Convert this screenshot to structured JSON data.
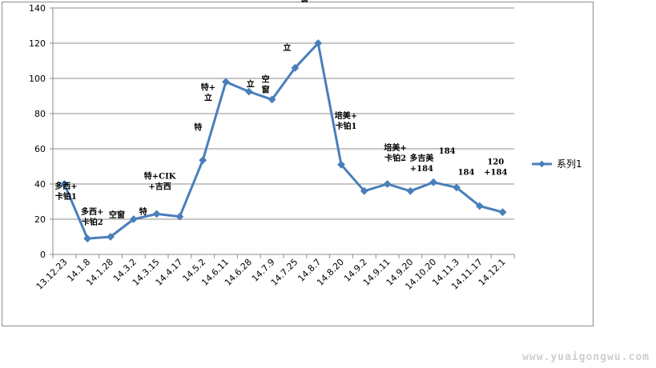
{
  "chart_data": {
    "type": "line",
    "categories": [
      "13.12.23",
      "14.1.8",
      "14.1.28",
      "14.3.2",
      "14.3.15",
      "14.4.17",
      "14.5.2",
      "14.6.11",
      "14.6.28",
      "14.7.9",
      "14.7.25",
      "14.8.7",
      "14.8.20",
      "14.9.2",
      "14.9.11",
      "14.9.20",
      "14.10.20",
      "14.11.3",
      "14.11.17",
      "14.12.1"
    ],
    "x_points": [
      "13.12.23",
      "",
      "14.1.8",
      "",
      "14.1.28",
      "",
      "14.3.2",
      "",
      "14.3.15",
      "",
      "14.4.17",
      "",
      "14.5.2",
      "",
      "14.6.11",
      "",
      "14.6.28",
      "",
      "14.7.9",
      "",
      "14.7.25",
      "",
      "14.8.7",
      "",
      "14.8.20",
      "",
      "14.9.2",
      "",
      "14.9.11",
      "",
      "14.9.20",
      "",
      "14.10.20",
      "",
      "14.11.3",
      "",
      "14.11.17",
      "",
      "14.12.1"
    ],
    "series": [
      {
        "name": "系列1",
        "color": "#4a7ebb",
        "values": [
          40,
          9,
          10,
          20,
          23,
          21.5,
          53.5,
          98,
          92.5,
          88,
          106,
          120,
          51,
          36,
          40,
          36,
          41,
          38,
          27.5,
          24
        ]
      }
    ],
    "ylim": [
      0,
      140
    ],
    "yticks": [
      0,
      20,
      40,
      60,
      80,
      100,
      120,
      140
    ],
    "grid": true,
    "legend_position": "right",
    "annotations": [
      {
        "point": 0,
        "lines": [
          "多西+",
          "卡铂1"
        ]
      },
      {
        "point": 1,
        "lines": [
          "多西+",
          "卡铂2"
        ]
      },
      {
        "point": 2,
        "lines": [
          "空窗"
        ]
      },
      {
        "point": 3,
        "lines": [
          "特"
        ]
      },
      {
        "point": 4,
        "lines": [
          "特+CIK",
          "+吉西"
        ]
      },
      {
        "point": 6,
        "lines": [
          "特"
        ]
      },
      {
        "point": 7,
        "lines": [
          "特+",
          "立"
        ]
      },
      {
        "point": 8,
        "lines": [
          "立"
        ]
      },
      {
        "point": 9,
        "lines": [
          "空",
          "窗"
        ]
      },
      {
        "point": 10,
        "lines": [
          "立"
        ]
      },
      {
        "point": 11,
        "lines": [
          "空",
          "窗"
        ]
      },
      {
        "point": 12,
        "lines": [
          "培美+",
          "卡铂1"
        ]
      },
      {
        "point": 14,
        "lines": [
          "培美+",
          "卡铂2"
        ]
      },
      {
        "point": 15,
        "lines": [
          "多吉美",
          "+184"
        ]
      },
      {
        "point": 16,
        "lines": [
          "184"
        ]
      },
      {
        "point": 17,
        "lines": [
          "184"
        ]
      },
      {
        "point": 18,
        "lines": [
          "120",
          "+184"
        ]
      }
    ]
  },
  "watermark": "www.yuaigongwu.com"
}
